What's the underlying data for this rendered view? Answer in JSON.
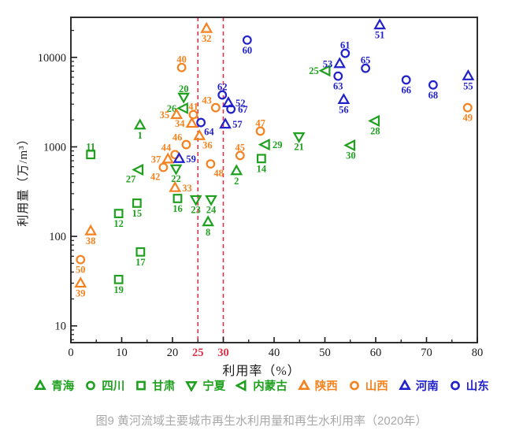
{
  "figure": {
    "caption": "图9 黄河流域主要城市再生水利用量和再生水利用率（2020年）",
    "caption_color": "#a8a8a8",
    "background": "#ffffff"
  },
  "chart_data": {
    "type": "scatter",
    "title": "",
    "xlabel": "利用率（%）",
    "ylabel": "利用量（万/m³）",
    "x_axis": {
      "min": 0,
      "max": 80,
      "major_ticks": [
        0,
        10,
        20,
        30,
        40,
        50,
        60,
        70,
        80
      ],
      "major_labels": [
        "0",
        "10",
        "20",
        "",
        "40",
        "50",
        "60",
        "70",
        "80"
      ],
      "minor_ticks": [
        5,
        15,
        25,
        35,
        45,
        55,
        65,
        75
      ],
      "red_tick_labels": [
        25,
        30
      ]
    },
    "y_axis": {
      "scale": "log",
      "min": 6.5,
      "max": 28000,
      "major_ticks": [
        10,
        100,
        1000,
        10000
      ],
      "major_labels": [
        "10",
        "100",
        "1000",
        "10000"
      ]
    },
    "ref_lines": {
      "x": [
        25,
        30
      ],
      "style": "dashed",
      "color": "#d93349"
    },
    "grid": false,
    "legend_position": "bottom",
    "colors": {
      "green": "#1fa11f",
      "orange": "#f5821e",
      "blue": "#2121cc",
      "red": "#d93349",
      "axis": "#1a1a1a"
    },
    "series": [
      {
        "key": "qinghai",
        "name": "青海",
        "marker": "triangle-up",
        "color": "green",
        "points": [
          {
            "n": "1",
            "x": 13.6,
            "y": 1750,
            "lp": "b"
          },
          {
            "n": "2",
            "x": 32.6,
            "y": 540,
            "lp": "b"
          },
          {
            "n": "8",
            "x": 27.0,
            "y": 145,
            "lp": "b"
          }
        ]
      },
      {
        "key": "sichuan",
        "name": "四川",
        "marker": "circle",
        "color": "green",
        "points": []
      },
      {
        "key": "gansu",
        "name": "甘肃",
        "marker": "square",
        "color": "green",
        "points": [
          {
            "n": "11",
            "x": 3.9,
            "y": 820,
            "lp": "a"
          },
          {
            "n": "12",
            "x": 9.4,
            "y": 180,
            "lp": "b"
          },
          {
            "n": "14",
            "x": 37.5,
            "y": 740,
            "lp": "b"
          },
          {
            "n": "15",
            "x": 13.0,
            "y": 235,
            "lp": "b"
          },
          {
            "n": "16",
            "x": 21.0,
            "y": 265,
            "lp": "b"
          },
          {
            "n": "17",
            "x": 13.7,
            "y": 67,
            "lp": "b"
          },
          {
            "n": "19",
            "x": 9.4,
            "y": 33,
            "lp": "b"
          }
        ]
      },
      {
        "key": "ningxia",
        "name": "宁夏",
        "marker": "triangle-down",
        "color": "green",
        "points": [
          {
            "n": "20",
            "x": 22.2,
            "y": 3600,
            "lp": "a"
          },
          {
            "n": "21",
            "x": 44.9,
            "y": 1300,
            "lp": "b"
          },
          {
            "n": "22",
            "x": 20.7,
            "y": 570,
            "lp": "b"
          },
          {
            "n": "23",
            "x": 24.6,
            "y": 258,
            "lp": "b"
          },
          {
            "n": "24",
            "x": 27.6,
            "y": 258,
            "lp": "b"
          }
        ]
      },
      {
        "key": "neimenggu",
        "name": "内蒙古",
        "marker": "triangle-left",
        "color": "green",
        "points": [
          {
            "n": "25",
            "x": 50.2,
            "y": 7100,
            "lp": "l"
          },
          {
            "n": "26",
            "x": 22.2,
            "y": 2700,
            "lp": "l"
          },
          {
            "n": "27",
            "x": 13.4,
            "y": 555,
            "lp": "bl"
          },
          {
            "n": "28",
            "x": 59.9,
            "y": 1950,
            "lp": "b"
          },
          {
            "n": "29",
            "x": 38.3,
            "y": 1060,
            "lp": "r"
          },
          {
            "n": "30",
            "x": 55.1,
            "y": 1040,
            "lp": "b"
          }
        ]
      },
      {
        "key": "shaanxi",
        "name": "陕西",
        "marker": "triangle-up",
        "color": "orange",
        "points": [
          {
            "n": "32",
            "x": 26.7,
            "y": 21000,
            "lp": "b"
          },
          {
            "n": "33",
            "x": 20.5,
            "y": 350,
            "lp": "r"
          },
          {
            "n": "34",
            "x": 23.8,
            "y": 1830,
            "lp": "l"
          },
          {
            "n": "35",
            "x": 20.8,
            "y": 2290,
            "lp": "l"
          },
          {
            "n": "36",
            "x": 25.3,
            "y": 1330,
            "lp": "br"
          },
          {
            "n": "37",
            "x": 19.1,
            "y": 730,
            "lp": "l"
          },
          {
            "n": "38",
            "x": 3.9,
            "y": 115,
            "lp": "b"
          },
          {
            "n": "39",
            "x": 1.9,
            "y": 30,
            "lp": "b"
          }
        ]
      },
      {
        "key": "shanxi",
        "name": "山西",
        "marker": "circle",
        "color": "orange",
        "points": [
          {
            "n": "40",
            "x": 21.8,
            "y": 7700,
            "lp": "a"
          },
          {
            "n": "41",
            "x": 24.1,
            "y": 2290,
            "lp": "a"
          },
          {
            "n": "42",
            "x": 18.2,
            "y": 590,
            "lp": "bl"
          },
          {
            "n": "43",
            "x": 28.5,
            "y": 2740,
            "lp": "al"
          },
          {
            "n": "44",
            "x": 20.5,
            "y": 820,
            "lp": "al"
          },
          {
            "n": "45",
            "x": 33.3,
            "y": 800,
            "lp": "a"
          },
          {
            "n": "46",
            "x": 22.7,
            "y": 1060,
            "lp": "al"
          },
          {
            "n": "47",
            "x": 37.3,
            "y": 1500,
            "lp": "a"
          },
          {
            "n": "48",
            "x": 27.5,
            "y": 645,
            "lp": "br"
          },
          {
            "n": "49",
            "x": 78.1,
            "y": 2740,
            "lp": "b"
          },
          {
            "n": "50",
            "x": 1.9,
            "y": 55,
            "lp": "b"
          }
        ]
      },
      {
        "key": "henan",
        "name": "河南",
        "marker": "triangle-up",
        "color": "blue",
        "points": [
          {
            "n": "51",
            "x": 60.8,
            "y": 23000,
            "lp": "b"
          },
          {
            "n": "52",
            "x": 31.0,
            "y": 3100,
            "lp": "r"
          },
          {
            "n": "53",
            "x": 52.9,
            "y": 8500,
            "lp": "l"
          },
          {
            "n": "55",
            "x": 78.2,
            "y": 6200,
            "lp": "b"
          },
          {
            "n": "56",
            "x": 53.7,
            "y": 3370,
            "lp": "b"
          },
          {
            "n": "57",
            "x": 30.4,
            "y": 1790,
            "lp": "r"
          },
          {
            "n": "59",
            "x": 21.3,
            "y": 740,
            "lp": "r"
          }
        ]
      },
      {
        "key": "shandong",
        "name": "山东",
        "marker": "circle",
        "color": "blue",
        "points": [
          {
            "n": "60",
            "x": 34.7,
            "y": 15600,
            "lp": "b"
          },
          {
            "n": "61",
            "x": 54.0,
            "y": 11100,
            "lp": "a"
          },
          {
            "n": "62",
            "x": 29.8,
            "y": 3800,
            "lp": "a"
          },
          {
            "n": "63",
            "x": 52.6,
            "y": 6170,
            "lp": "b"
          },
          {
            "n": "64",
            "x": 25.6,
            "y": 1870,
            "lp": "br"
          },
          {
            "n": "65",
            "x": 58.0,
            "y": 7550,
            "lp": "a"
          },
          {
            "n": "66",
            "x": 66.0,
            "y": 5600,
            "lp": "b"
          },
          {
            "n": "67",
            "x": 31.5,
            "y": 2640,
            "lp": "r"
          },
          {
            "n": "68",
            "x": 71.3,
            "y": 4920,
            "lp": "b"
          }
        ]
      }
    ]
  }
}
